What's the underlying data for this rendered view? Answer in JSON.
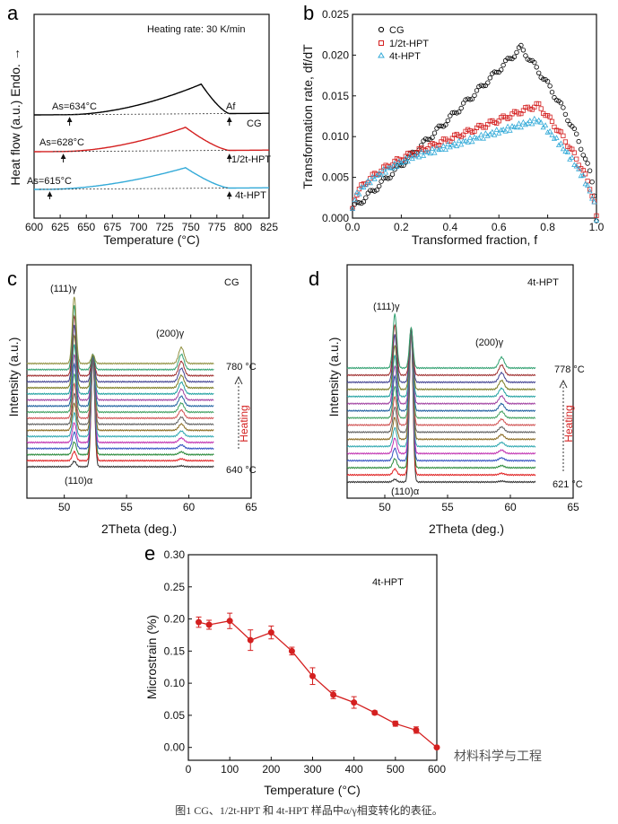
{
  "figure": {
    "caption": "图1 CG、1/2t-HPT 和 4t-HPT 样品中α/γ相变转化的表征。",
    "watermark": "材料科学与工程",
    "colors": {
      "CG": "#000000",
      "half": "#d42020",
      "four": "#33aad8",
      "accent": "#d42020"
    }
  },
  "chart_data": [
    {
      "panel": "a",
      "type": "line",
      "title": "Heating rate: 30 K/min",
      "xlabel": "Temperature (°C)",
      "ylabel": "Heat flow (a.u.) Endo. →",
      "xlim": [
        600,
        825
      ],
      "xticks": [
        "600",
        "625",
        "650",
        "675",
        "700",
        "725",
        "750",
        "775",
        "800",
        "825"
      ],
      "series": [
        {
          "name": "CG",
          "start_label": "As=634°C",
          "end_label": "Af",
          "As": 634,
          "Af": 787,
          "peak": 760
        },
        {
          "name": "1/2t-HPT",
          "start_label": "As=628°C",
          "As": 628,
          "Af": 787,
          "peak": 745
        },
        {
          "name": "4t-HPT",
          "start_label": "As=615°C",
          "As": 615,
          "Af": 787,
          "peak": 745
        }
      ]
    },
    {
      "panel": "b",
      "type": "scatter",
      "xlabel": "Transformed fraction, f",
      "ylabel": "Transformation rate, df/dT",
      "xlim": [
        0,
        1
      ],
      "ylim": [
        0,
        0.025
      ],
      "xticks": [
        "0.0",
        "0.2",
        "0.4",
        "0.6",
        "0.8",
        "1.0"
      ],
      "yticks": [
        "0.000",
        "0.005",
        "0.010",
        "0.015",
        "0.020",
        "0.025"
      ],
      "legend": [
        "CG",
        "1/2t-HPT",
        "4t-HPT"
      ],
      "series": [
        {
          "name": "CG",
          "peak_x": 0.69,
          "peak_y": 0.0209
        },
        {
          "name": "1/2t-HPT",
          "peak_x": 0.76,
          "peak_y": 0.0139
        },
        {
          "name": "4t-HPT",
          "peak_x": 0.76,
          "peak_y": 0.0128
        }
      ]
    },
    {
      "panel": "c",
      "type": "line",
      "sample": "CG",
      "xlabel": "2Theta (deg.)",
      "ylabel": "Intensity (a.u.)",
      "xlim": [
        47,
        65
      ],
      "xticks": [
        "50",
        "55",
        "60",
        "65"
      ],
      "peak_labels": {
        "g111": "(111)γ",
        "g200": "(200)γ",
        "a110": "(110)α"
      },
      "peaks": {
        "g111": 50.8,
        "a110": 52.3,
        "g200": 59.4
      },
      "temp_high": "780 °C",
      "temp_low": "640 °C",
      "heating_label": "Heating",
      "n_scans": 18
    },
    {
      "panel": "d",
      "type": "line",
      "sample": "4t-HPT",
      "xlabel": "2Theta (deg.)",
      "ylabel": "Intensity (a.u.)",
      "xlim": [
        47,
        65
      ],
      "xticks": [
        "50",
        "55",
        "60",
        "65"
      ],
      "peak_labels": {
        "g111": "(111)γ",
        "g200": "(200)γ",
        "a110": "(110)α"
      },
      "peaks": {
        "g111": 50.8,
        "a110": 52.1,
        "g200": 59.3
      },
      "temp_high": "778 °C",
      "temp_low": "621 °C",
      "heating_label": "Heating",
      "n_scans": 17
    },
    {
      "panel": "e",
      "type": "line",
      "sample": "4t-HPT",
      "xlabel": "Temperature (°C)",
      "ylabel": "Microstrain (%)",
      "xlim": [
        0,
        600
      ],
      "ylim": [
        -0.02,
        0.3
      ],
      "xticks": [
        "0",
        "100",
        "200",
        "300",
        "400",
        "500",
        "600"
      ],
      "yticks": [
        "0.00",
        "0.05",
        "0.10",
        "0.15",
        "0.20",
        "0.25",
        "0.30"
      ],
      "x": [
        25,
        50,
        100,
        150,
        200,
        250,
        300,
        350,
        400,
        450,
        500,
        550,
        600
      ],
      "values": [
        0.195,
        0.191,
        0.197,
        0.167,
        0.179,
        0.15,
        0.111,
        0.082,
        0.07,
        0.054,
        0.037,
        0.027,
        0.0
      ],
      "errors": [
        0.008,
        0.007,
        0.012,
        0.016,
        0.01,
        0.006,
        0.013,
        0.006,
        0.009,
        0.003,
        0.004,
        0.005,
        0.002
      ]
    }
  ]
}
